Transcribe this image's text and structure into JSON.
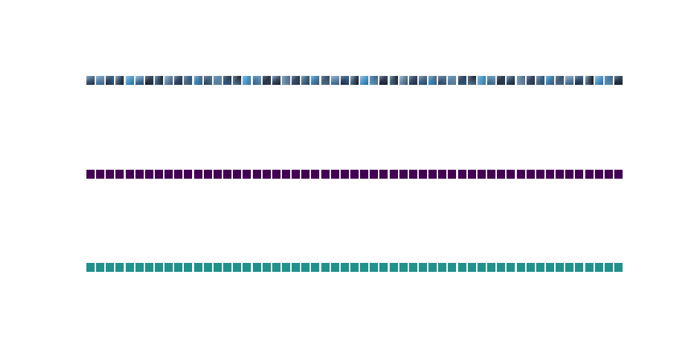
{
  "colors": {
    "background": "#ffffff",
    "mask_purple": "#440154",
    "mask_teal": "#21918c"
  },
  "rows": [
    {
      "id": "image-row",
      "kind": "images",
      "tile_count": 55,
      "palette": [
        "#2b3f5c",
        "#3d6f9e",
        "#1f2a3a",
        "#5a7d99",
        "#6fa3c9",
        "#2e5d85",
        "#1a2233",
        "#4b6f8f",
        "#7d9db8",
        "#3a4e6b",
        "#586f85",
        "#2f8fcf"
      ]
    },
    {
      "id": "purple-mask-row",
      "kind": "mask",
      "tile_count": 55,
      "color": "#440154"
    },
    {
      "id": "teal-mask-row",
      "kind": "mask",
      "tile_count": 55,
      "color": "#21918c"
    }
  ]
}
